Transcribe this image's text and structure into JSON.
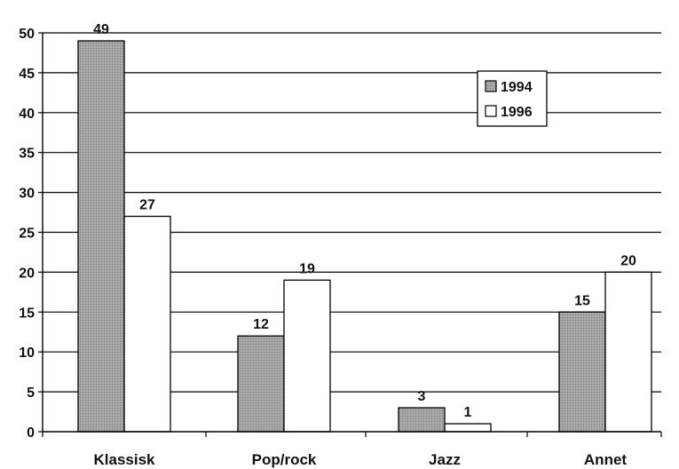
{
  "chart_data": {
    "type": "bar",
    "categories": [
      "Klassisk",
      "Pop/rock",
      "Jazz",
      "Annet"
    ],
    "series": [
      {
        "name": "1994",
        "values": [
          49,
          12,
          3,
          15
        ],
        "color": "#9a9a9a"
      },
      {
        "name": "1996",
        "values": [
          27,
          19,
          1,
          20
        ],
        "color": "#ffffff"
      }
    ],
    "ylim": [
      0,
      50
    ],
    "yticks": [
      0,
      5,
      10,
      15,
      20,
      25,
      30,
      35,
      40,
      45,
      50
    ],
    "ytick_labels": [
      "0",
      "5",
      "10",
      "15",
      "20",
      "25",
      "30",
      "35",
      "40",
      "45",
      "50"
    ],
    "title": "",
    "xlabel": "",
    "ylabel": "",
    "grid": true,
    "legend_position": "top-right",
    "data_labels": true
  }
}
